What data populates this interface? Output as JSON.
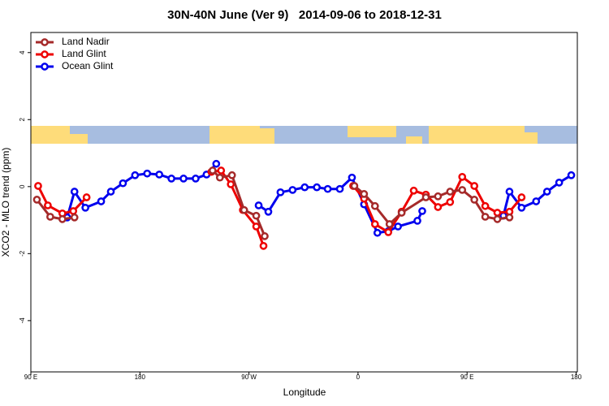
{
  "chart_data": {
    "type": "line",
    "title": "30N-40N June (Ver 9)   2014-09-06 to 2018-12-31",
    "x_label": "Longitude",
    "y_label": "XCO2 - MLO trend (ppm)",
    "xlim": [
      90,
      541
    ],
    "xticks": [
      {
        "value": 90,
        "label": "90 E"
      },
      {
        "value": 180,
        "label": "180"
      },
      {
        "value": 270,
        "label": "90 W"
      },
      {
        "value": 360,
        "label": "0"
      },
      {
        "value": 450,
        "label": "90 E"
      },
      {
        "value": 540,
        "label": "180"
      }
    ],
    "ylim": [
      -5.53,
      4.6
    ],
    "yticks": [
      -4,
      -2,
      0,
      2,
      4
    ],
    "legend": "top-left",
    "series": [
      {
        "name": "Land Nadir",
        "color": "#a52a2a",
        "x": [
          95,
          106,
          116,
          126,
          null,
          240,
          246,
          256,
          266,
          276,
          283,
          null,
          357,
          365,
          374,
          386,
          396,
          416,
          426,
          436,
          446,
          456,
          465,
          475,
          485
        ],
        "values": [
          -0.39,
          -0.9,
          -0.97,
          -0.92,
          null,
          0.48,
          0.27,
          0.34,
          -0.7,
          -0.87,
          -1.48,
          null,
          0.02,
          -0.22,
          -0.58,
          -1.12,
          -0.78,
          -0.32,
          -0.29,
          -0.15,
          -0.1,
          -0.39,
          -0.9,
          -0.97,
          -0.92
        ]
      },
      {
        "name": "Land Glint",
        "color": "#ee0000",
        "x": [
          96,
          104,
          116,
          125,
          136,
          null,
          239,
          247,
          255,
          265,
          276,
          282,
          null,
          356,
          365,
          374,
          385,
          396,
          406,
          416,
          426,
          436,
          446,
          456,
          465,
          475,
          485,
          495
        ],
        "values": [
          0.02,
          -0.56,
          -0.8,
          -0.73,
          -0.32,
          null,
          0.44,
          0.48,
          0.07,
          -0.7,
          -1.19,
          -1.77,
          null,
          0.02,
          -0.36,
          -1.12,
          -1.36,
          -0.75,
          -0.12,
          -0.24,
          -0.61,
          -0.46,
          0.29,
          0.02,
          -0.58,
          -0.78,
          -0.75,
          -0.32
        ]
      },
      {
        "name": "Ocean Glint",
        "color": "#0000ee",
        "x": [
          120,
          126,
          135,
          148,
          156,
          166,
          176,
          186,
          196,
          206,
          216,
          226,
          235,
          243,
          null,
          278,
          286,
          296,
          306,
          316,
          326,
          335,
          345,
          355,
          365,
          376,
          385,
          393,
          409,
          413,
          null,
          480,
          485,
          495,
          507,
          516,
          526,
          536
        ],
        "values": [
          -0.92,
          -0.15,
          -0.63,
          -0.44,
          -0.15,
          0.1,
          0.34,
          0.39,
          0.36,
          0.24,
          0.24,
          0.24,
          0.36,
          0.68,
          null,
          -0.56,
          -0.75,
          -0.17,
          -0.1,
          -0.02,
          -0.02,
          -0.07,
          -0.07,
          0.27,
          -0.53,
          -1.38,
          -1.33,
          -1.19,
          -1.02,
          -0.73,
          null,
          -0.87,
          -0.15,
          -0.63,
          -0.44,
          -0.15,
          0.12,
          0.34
        ]
      }
    ]
  }
}
